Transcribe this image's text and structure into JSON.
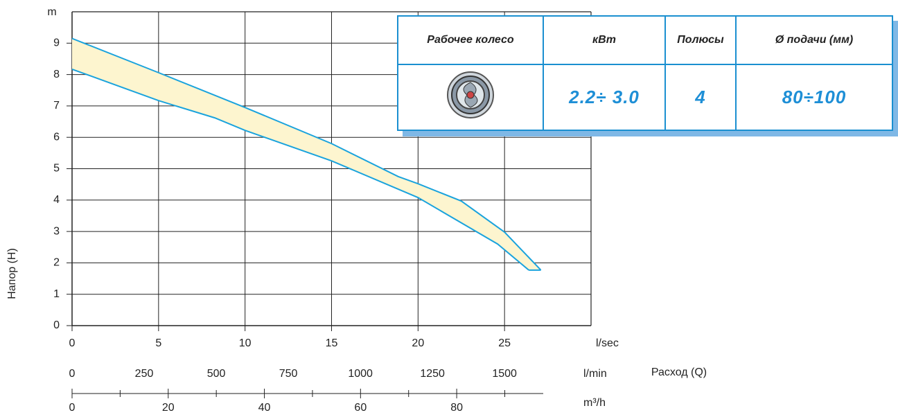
{
  "chart_data": {
    "type": "band",
    "y_label": "Напор (H)",
    "y_unit": "m",
    "x_label": "Расход (Q)",
    "ylim": [
      0,
      10
    ],
    "yticks": [
      0,
      1,
      2,
      3,
      4,
      5,
      6,
      7,
      8,
      9
    ],
    "grid": true,
    "fill": "#fdf5cf",
    "series": [
      {
        "color": "#1aa3dd",
        "x": [
          0,
          5,
          10,
          15,
          18.85,
          20,
          22.5,
          25,
          27.1
        ],
        "values": [
          9.15,
          8.06,
          6.95,
          5.8,
          4.75,
          4.52,
          3.97,
          2.98,
          1.77
        ]
      },
      {
        "color": "#1aa3dd",
        "x": [
          0,
          5,
          8.25,
          10,
          15,
          20,
          24.6,
          26.4
        ],
        "values": [
          8.17,
          7.17,
          6.62,
          6.22,
          5.25,
          4.08,
          2.6,
          1.77
        ]
      }
    ],
    "xaxes": [
      {
        "unit": "l/sec",
        "xlim": [
          0,
          30
        ],
        "xticks": [
          0,
          5,
          10,
          15,
          20,
          25
        ]
      },
      {
        "unit": "l/min",
        "xlim": [
          0,
          1800
        ],
        "xticks": [
          0,
          250,
          500,
          750,
          1000,
          1250,
          1500
        ]
      },
      {
        "unit": "m³/h",
        "xlim": [
          0,
          98
        ],
        "xticks": [
          0,
          20,
          40,
          60,
          80
        ],
        "minor_ticks": [
          10,
          30,
          50,
          70,
          90
        ]
      }
    ]
  },
  "table": {
    "headers": [
      "Рабочее колесо",
      "кВт",
      "Полюсы",
      "Ø подачи (мм)"
    ],
    "row": [
      "2.2÷ 3.0",
      "4",
      "80÷100"
    ]
  }
}
